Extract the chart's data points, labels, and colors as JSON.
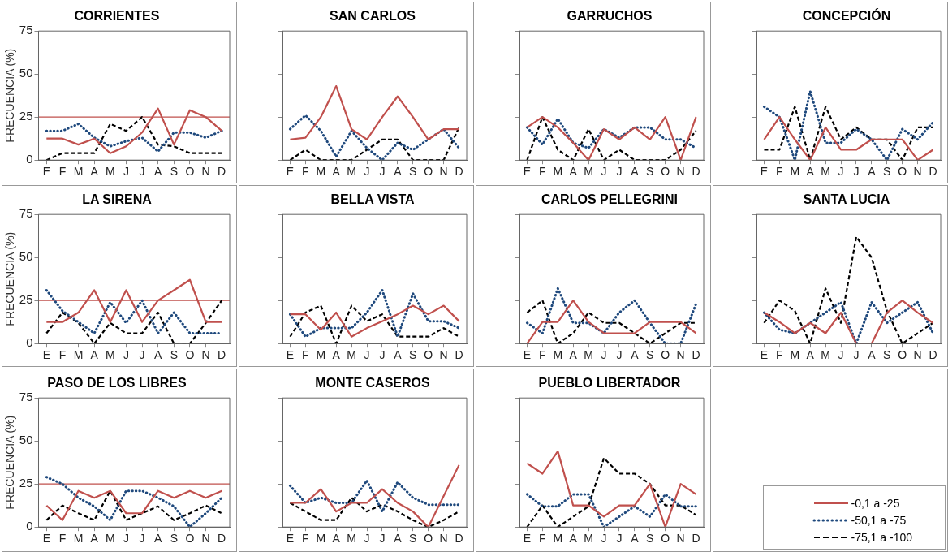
{
  "chart_data": [
    {
      "type": "line",
      "title": "CORRIENTES",
      "ylabel": "FRECUENCIA (%)",
      "categories": [
        "E",
        "F",
        "M",
        "A",
        "M",
        "J",
        "J",
        "A",
        "S",
        "O",
        "N",
        "D"
      ],
      "ylim": [
        0,
        75
      ],
      "yticks": [
        0,
        25,
        50,
        75
      ],
      "marker": "none",
      "ref_lines": [
        {
          "axis": "y",
          "value": 25,
          "color": "#c0504d"
        }
      ],
      "series": [
        {
          "color": "#c0504d",
          "line_style": "solid",
          "values": [
            12.5,
            12.5,
            9,
            12.5,
            4,
            8,
            16,
            30,
            9,
            29,
            25,
            17
          ]
        },
        {
          "color": "#1f497d",
          "line_style": "dotted",
          "values": [
            17,
            17,
            21,
            13,
            8,
            11,
            13,
            5,
            16,
            16,
            13,
            17
          ]
        },
        {
          "color": "#000000",
          "line_style": "dashed",
          "values": [
            0,
            4,
            4,
            4,
            21,
            17,
            25,
            9,
            8,
            4,
            4,
            4
          ]
        }
      ]
    },
    {
      "type": "line",
      "title": "SAN CARLOS",
      "categories": [
        "E",
        "F",
        "M",
        "A",
        "M",
        "J",
        "J",
        "A",
        "S",
        "O",
        "N",
        "D"
      ],
      "ylim": [
        0,
        75
      ],
      "yticks": [
        0,
        25,
        50,
        75
      ],
      "tick_labels": "x",
      "marker": "none",
      "series": [
        {
          "color": "#c0504d",
          "line_style": "solid",
          "values": [
            12,
            13,
            25,
            43,
            18,
            12,
            25,
            37,
            25,
            12,
            18,
            18
          ]
        },
        {
          "color": "#1f497d",
          "line_style": "dotted",
          "values": [
            18,
            26,
            17,
            2,
            17,
            7,
            0,
            10,
            6,
            12,
            18,
            7
          ]
        },
        {
          "color": "#000000",
          "line_style": "dashed",
          "values": [
            0,
            6,
            0,
            0,
            0,
            6,
            12,
            12,
            0,
            0,
            0,
            19
          ]
        }
      ]
    },
    {
      "type": "line",
      "title": "GARRUCHOS",
      "categories": [
        "E",
        "F",
        "M",
        "A",
        "M",
        "J",
        "J",
        "A",
        "S",
        "O",
        "N",
        "D"
      ],
      "ylim": [
        0,
        75
      ],
      "yticks": [
        0,
        25,
        50,
        75
      ],
      "tick_labels": "x",
      "marker": "none",
      "series": [
        {
          "color": "#c0504d",
          "line_style": "solid",
          "values": [
            19,
            25,
            19,
            10,
            0,
            18,
            12,
            19,
            12,
            25,
            0,
            25
          ]
        },
        {
          "color": "#1f497d",
          "line_style": "dotted",
          "values": [
            19,
            9,
            24,
            10,
            7,
            18,
            13,
            19,
            19,
            12,
            12,
            7
          ]
        },
        {
          "color": "#000000",
          "line_style": "dashed",
          "values": [
            0,
            25,
            6,
            0,
            18,
            0,
            6,
            0,
            0,
            0,
            6,
            17
          ]
        }
      ]
    },
    {
      "type": "line",
      "title": "CONCEPCIÓN",
      "categories": [
        "E",
        "F",
        "M",
        "A",
        "M",
        "J",
        "J",
        "A",
        "S",
        "O",
        "N",
        "D"
      ],
      "ylim": [
        0,
        75
      ],
      "yticks": [
        0,
        25,
        50,
        75
      ],
      "tick_labels": "x",
      "marker": "none",
      "series": [
        {
          "color": "#c0504d",
          "line_style": "solid",
          "values": [
            12,
            25,
            12,
            0,
            19,
            6,
            6,
            12,
            12,
            12,
            0,
            6
          ]
        },
        {
          "color": "#1f497d",
          "line_style": "dotted",
          "values": [
            31,
            25,
            0,
            40,
            10,
            10,
            18,
            12,
            0,
            18,
            12,
            22
          ]
        },
        {
          "color": "#000000",
          "line_style": "dashed",
          "values": [
            6,
            6,
            31,
            0,
            31,
            12,
            19,
            12,
            12,
            0,
            19,
            19
          ]
        }
      ]
    },
    {
      "type": "line",
      "title": "LA SIRENA",
      "ylabel": "FRECUENCIA (%)",
      "categories": [
        "E",
        "F",
        "M",
        "A",
        "M",
        "J",
        "J",
        "A",
        "S",
        "O",
        "N",
        "D"
      ],
      "ylim": [
        0,
        75
      ],
      "yticks": [
        0,
        25,
        50,
        75
      ],
      "marker": "none",
      "ref_lines": [
        {
          "axis": "y",
          "value": 25,
          "color": "#c0504d"
        }
      ],
      "series": [
        {
          "color": "#c0504d",
          "line_style": "solid",
          "values": [
            12.5,
            12.5,
            18,
            31,
            12.5,
            31,
            12.5,
            25,
            31,
            37,
            12.5,
            12.5
          ]
        },
        {
          "color": "#1f497d",
          "line_style": "dotted",
          "values": [
            31,
            19,
            12.5,
            6,
            24,
            12,
            25,
            6,
            18,
            6,
            6,
            6
          ]
        },
        {
          "color": "#000000",
          "line_style": "dashed",
          "values": [
            6,
            18,
            12,
            0,
            12,
            6,
            6,
            18,
            0,
            0,
            12,
            25
          ]
        }
      ]
    },
    {
      "type": "line",
      "title": "BELLA VISTA",
      "categories": [
        "E",
        "F",
        "M",
        "A",
        "M",
        "J",
        "J",
        "A",
        "S",
        "O",
        "N",
        "D"
      ],
      "ylim": [
        0,
        75
      ],
      "yticks": [
        0,
        25,
        50,
        75
      ],
      "tick_labels": "x",
      "marker": "none",
      "series": [
        {
          "color": "#c0504d",
          "line_style": "solid",
          "values": [
            17,
            17,
            8,
            18,
            4,
            9,
            13,
            17,
            22,
            17,
            22,
            13
          ]
        },
        {
          "color": "#1f497d",
          "line_style": "dotted",
          "values": [
            17,
            4,
            9,
            9,
            9,
            18,
            31,
            4,
            29,
            13,
            13,
            9
          ]
        },
        {
          "color": "#000000",
          "line_style": "dashed",
          "values": [
            4,
            18,
            22,
            0,
            22,
            13,
            17,
            4,
            4,
            4,
            9,
            4
          ]
        }
      ]
    },
    {
      "type": "line",
      "title": "CARLOS PELLEGRINI",
      "categories": [
        "E",
        "F",
        "M",
        "A",
        "M",
        "J",
        "J",
        "A",
        "S",
        "O",
        "N",
        "D"
      ],
      "ylim": [
        0,
        75
      ],
      "yticks": [
        0,
        25,
        50,
        75
      ],
      "tick_labels": "x",
      "marker": "none",
      "series": [
        {
          "color": "#c0504d",
          "line_style": "solid",
          "values": [
            0,
            12.5,
            12.5,
            25,
            12.5,
            6,
            6,
            6,
            12.5,
            12.5,
            12.5,
            6
          ]
        },
        {
          "color": "#1f497d",
          "line_style": "dotted",
          "values": [
            12,
            6,
            32,
            12,
            12,
            6,
            18,
            25,
            12,
            0,
            0,
            23
          ]
        },
        {
          "color": "#000000",
          "line_style": "dashed",
          "values": [
            18,
            25,
            0,
            6,
            18,
            12,
            12,
            6,
            0,
            6,
            12,
            12
          ]
        }
      ]
    },
    {
      "type": "line",
      "title": "SANTA LUCIA",
      "categories": [
        "E",
        "F",
        "M",
        "A",
        "M",
        "J",
        "J",
        "A",
        "S",
        "O",
        "N",
        "D"
      ],
      "ylim": [
        0,
        75
      ],
      "yticks": [
        0,
        25,
        50,
        75
      ],
      "tick_labels": "x",
      "marker": "none",
      "series": [
        {
          "color": "#c0504d",
          "line_style": "solid",
          "values": [
            18,
            12.5,
            6,
            12,
            6,
            18,
            0,
            0,
            18,
            25,
            18,
            12
          ]
        },
        {
          "color": "#1f497d",
          "line_style": "dotted",
          "values": [
            18,
            8,
            6,
            12,
            18,
            24,
            0,
            24,
            12,
            18,
            24,
            6
          ]
        },
        {
          "color": "#000000",
          "line_style": "dashed",
          "values": [
            12,
            25,
            19,
            0,
            32,
            12,
            62,
            50,
            19,
            0,
            6,
            12
          ]
        }
      ]
    },
    {
      "type": "line",
      "title": "PASO DE LOS LIBRES",
      "ylabel": "FRECUENCIA (%)",
      "categories": [
        "E",
        "F",
        "M",
        "A",
        "M",
        "J",
        "J",
        "A",
        "S",
        "O",
        "N",
        "D"
      ],
      "ylim": [
        0,
        75
      ],
      "yticks": [
        0,
        25,
        50,
        75
      ],
      "marker": "none",
      "ref_lines": [
        {
          "axis": "y",
          "value": 25,
          "color": "#c0504d"
        }
      ],
      "series": [
        {
          "color": "#c0504d",
          "line_style": "solid",
          "values": [
            12.5,
            4,
            21,
            17,
            21,
            8,
            8,
            21,
            17,
            21,
            17,
            21
          ]
        },
        {
          "color": "#1f497d",
          "line_style": "dotted",
          "values": [
            29,
            25,
            17,
            12,
            4,
            21,
            21,
            17,
            12,
            0,
            8,
            17
          ]
        },
        {
          "color": "#000000",
          "line_style": "dashed",
          "values": [
            4,
            12.5,
            8,
            4,
            21,
            4,
            8,
            12,
            4,
            8,
            12.5,
            8
          ]
        }
      ]
    },
    {
      "type": "line",
      "title": "MONTE CASEROS",
      "categories": [
        "E",
        "F",
        "M",
        "A",
        "M",
        "J",
        "J",
        "A",
        "S",
        "O",
        "N",
        "D"
      ],
      "ylim": [
        0,
        75
      ],
      "yticks": [
        0,
        25,
        50,
        75
      ],
      "tick_labels": "x",
      "marker": "none",
      "series": [
        {
          "color": "#c0504d",
          "line_style": "solid",
          "values": [
            14,
            14,
            22,
            9,
            14,
            14,
            22,
            14,
            9,
            0,
            18,
            36
          ]
        },
        {
          "color": "#1f497d",
          "line_style": "dotted",
          "values": [
            24,
            14,
            17,
            14,
            14,
            27,
            9,
            26,
            17,
            13,
            13,
            13
          ]
        },
        {
          "color": "#000000",
          "line_style": "dashed",
          "values": [
            14,
            9,
            4,
            4,
            17,
            9,
            13,
            9,
            4,
            0,
            4,
            9
          ]
        }
      ]
    },
    {
      "type": "line",
      "title": "PUEBLO LIBERTADOR",
      "categories": [
        "E",
        "F",
        "M",
        "A",
        "M",
        "J",
        "J",
        "A",
        "S",
        "O",
        "N",
        "D"
      ],
      "ylim": [
        0,
        75
      ],
      "yticks": [
        0,
        25,
        50,
        75
      ],
      "tick_labels": "x",
      "marker": "none",
      "legend": "bottom right",
      "series": [
        {
          "name": "-0,1 a -25",
          "color": "#c0504d",
          "line_style": "solid",
          "values": [
            37,
            31,
            44,
            12.5,
            12.5,
            6,
            12.5,
            12.5,
            25,
            0,
            25,
            19
          ]
        },
        {
          "name": "-50,1 a -75",
          "color": "#1f497d",
          "line_style": "dotted",
          "values": [
            19,
            12,
            12,
            19,
            19,
            0,
            6,
            12,
            6,
            19,
            12,
            12
          ]
        },
        {
          "name": "-75,1 a -100",
          "color": "#000000",
          "line_style": "dashed",
          "values": [
            0,
            12.5,
            0,
            6,
            12,
            40,
            31,
            31,
            25,
            12.5,
            12.5,
            7
          ]
        }
      ]
    }
  ]
}
